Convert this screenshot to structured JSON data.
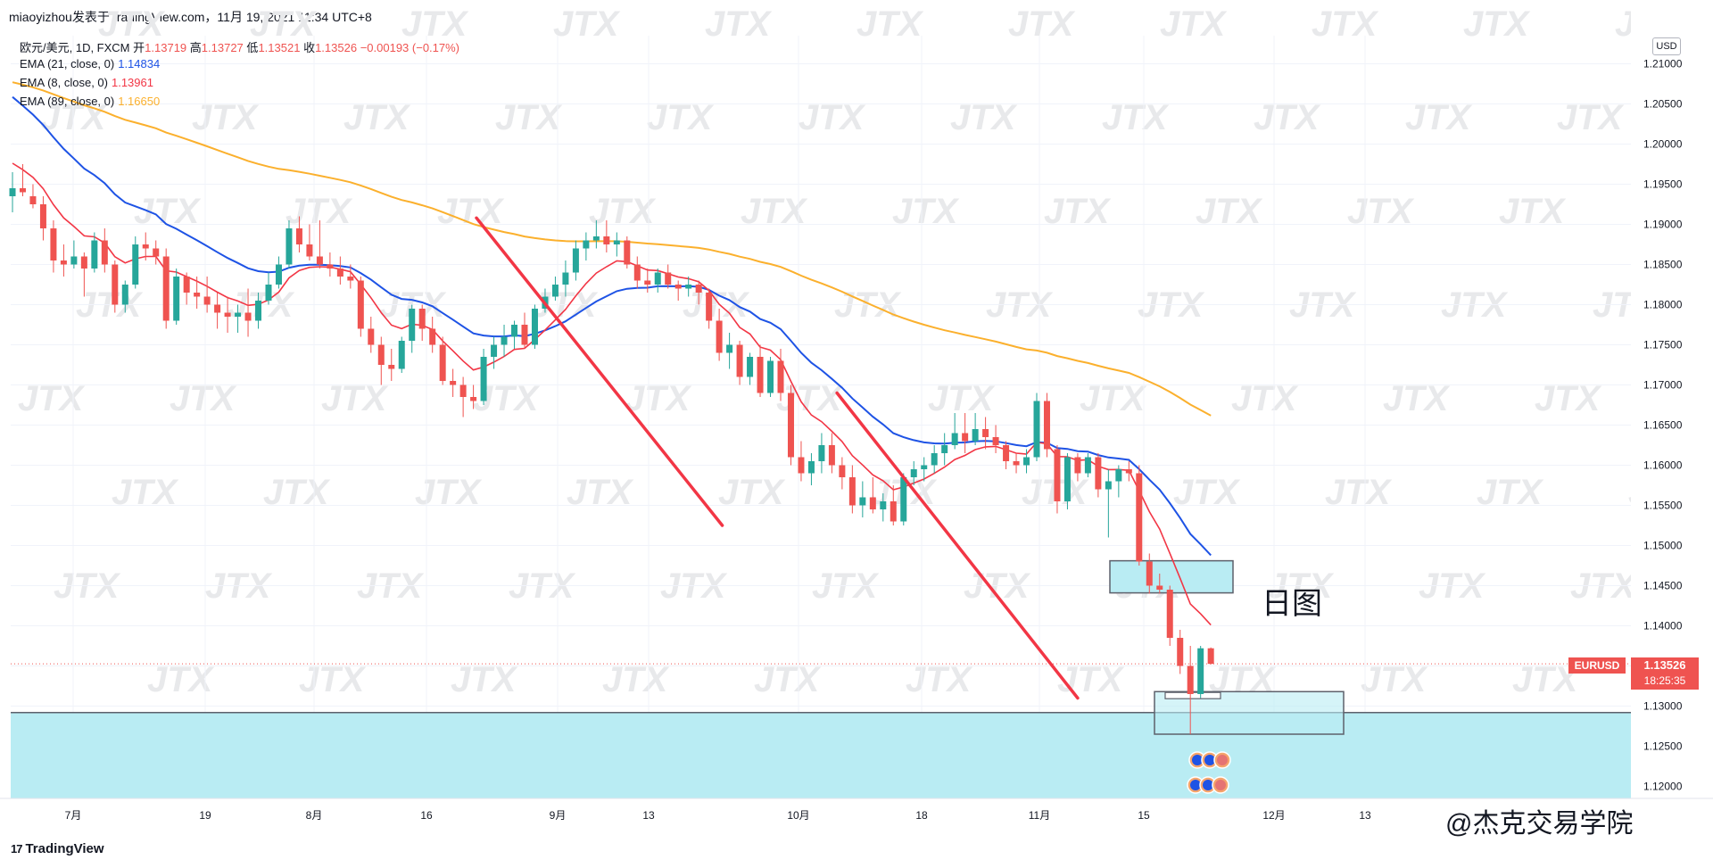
{
  "header": {
    "publish_line": "miaoyizhou发表于TradingView.com，11月 19, 2021 11:34 UTC+8"
  },
  "legend": {
    "symbol": "欧元/美元, 1D, FXCM",
    "open_label": "开",
    "open": "1.13719",
    "high_label": "高",
    "high": "1.13727",
    "low_label": "低",
    "low": "1.13521",
    "close_label": "收",
    "close": "1.13526",
    "change": "−0.00193 (−0.17%)",
    "ema21": {
      "label": "EMA (21, close, 0)",
      "value": "1.14834",
      "color": "#1e53e5"
    },
    "ema8": {
      "label": "EMA (8, close, 0)",
      "value": "1.13961",
      "color": "#f23645"
    },
    "ema89": {
      "label": "EMA (89, close, 0)",
      "value": "1.16650",
      "color": "#fbb02d"
    }
  },
  "currency_button": "USD",
  "price_tag": {
    "symbol": "EURUSD",
    "price": "1.13526",
    "countdown": "18:25:35"
  },
  "annotation_text": "日图",
  "watermark_text": "JTX",
  "footer": {
    "logo_text": "TradingView",
    "logo_mark": "17",
    "credit": "@杰克交易学院"
  },
  "colors": {
    "up": "#26a69a",
    "down": "#ef5350",
    "zone": "#b9ecf3",
    "trendline": "#f23645"
  },
  "chart_data": {
    "type": "candlestick",
    "title": "",
    "instrument": "EURUSD",
    "timeframe": "1D",
    "y_axis": {
      "ticks": [
        "1.21000",
        "1.20500",
        "1.20000",
        "1.19500",
        "1.19000",
        "1.18500",
        "1.18000",
        "1.17500",
        "1.17000",
        "1.16500",
        "1.16000",
        "1.15500",
        "1.15000",
        "1.14500",
        "1.14000",
        "1.13500",
        "1.13000",
        "1.12500",
        "1.12000"
      ],
      "range": [
        1.1185,
        1.2135
      ]
    },
    "x_axis": {
      "ticks": [
        "7月",
        "19",
        "8月",
        "16",
        "9月",
        "13",
        "10月",
        "18",
        "11月",
        "15",
        "12月",
        "13"
      ]
    },
    "current_price": 1.13526,
    "candles": [
      [
        1.1935,
        1.1965,
        1.1915,
        1.1945
      ],
      [
        1.1945,
        1.1975,
        1.1935,
        1.194
      ],
      [
        1.1935,
        1.195,
        1.192,
        1.1925
      ],
      [
        1.1925,
        1.1935,
        1.188,
        1.1895
      ],
      [
        1.1895,
        1.1905,
        1.184,
        1.1855
      ],
      [
        1.1855,
        1.1875,
        1.1835,
        1.185
      ],
      [
        1.185,
        1.188,
        1.1845,
        1.186
      ],
      [
        1.186,
        1.1865,
        1.181,
        1.1845
      ],
      [
        1.1845,
        1.189,
        1.184,
        1.188
      ],
      [
        1.188,
        1.1895,
        1.184,
        1.185
      ],
      [
        1.185,
        1.1855,
        1.179,
        1.18
      ],
      [
        1.18,
        1.183,
        1.179,
        1.1825
      ],
      [
        1.1825,
        1.1885,
        1.182,
        1.1875
      ],
      [
        1.1875,
        1.189,
        1.1855,
        1.187
      ],
      [
        1.187,
        1.188,
        1.185,
        1.186
      ],
      [
        1.186,
        1.187,
        1.177,
        1.178
      ],
      [
        1.178,
        1.1845,
        1.1775,
        1.1835
      ],
      [
        1.1835,
        1.184,
        1.18,
        1.1815
      ],
      [
        1.1815,
        1.1835,
        1.1795,
        1.181
      ],
      [
        1.181,
        1.1835,
        1.179,
        1.18
      ],
      [
        1.18,
        1.1815,
        1.177,
        1.179
      ],
      [
        1.179,
        1.181,
        1.1765,
        1.1785
      ],
      [
        1.1785,
        1.18,
        1.1765,
        1.179
      ],
      [
        1.179,
        1.182,
        1.176,
        1.178
      ],
      [
        1.178,
        1.1815,
        1.177,
        1.1805
      ],
      [
        1.1805,
        1.184,
        1.18,
        1.1825
      ],
      [
        1.1825,
        1.186,
        1.182,
        1.185
      ],
      [
        1.185,
        1.1905,
        1.1845,
        1.1895
      ],
      [
        1.1895,
        1.191,
        1.1865,
        1.1875
      ],
      [
        1.1875,
        1.19,
        1.1855,
        1.186
      ],
      [
        1.186,
        1.1905,
        1.1845,
        1.185
      ],
      [
        1.185,
        1.1865,
        1.1835,
        1.1845
      ],
      [
        1.1845,
        1.186,
        1.1825,
        1.1835
      ],
      [
        1.1835,
        1.185,
        1.182,
        1.183
      ],
      [
        1.183,
        1.1835,
        1.176,
        1.177
      ],
      [
        1.177,
        1.1785,
        1.174,
        1.175
      ],
      [
        1.175,
        1.176,
        1.17,
        1.1725
      ],
      [
        1.1725,
        1.1745,
        1.1705,
        1.172
      ],
      [
        1.172,
        1.176,
        1.1715,
        1.1755
      ],
      [
        1.1755,
        1.18,
        1.174,
        1.1795
      ],
      [
        1.1795,
        1.18,
        1.1755,
        1.177
      ],
      [
        1.177,
        1.1785,
        1.174,
        1.175
      ],
      [
        1.175,
        1.176,
        1.17,
        1.1705
      ],
      [
        1.1705,
        1.172,
        1.1685,
        1.17
      ],
      [
        1.17,
        1.171,
        1.166,
        1.1685
      ],
      [
        1.1685,
        1.17,
        1.167,
        1.168
      ],
      [
        1.168,
        1.1745,
        1.1675,
        1.1735
      ],
      [
        1.1735,
        1.176,
        1.172,
        1.175
      ],
      [
        1.175,
        1.1775,
        1.1735,
        1.176
      ],
      [
        1.176,
        1.178,
        1.1745,
        1.1775
      ],
      [
        1.1775,
        1.179,
        1.1745,
        1.175
      ],
      [
        1.175,
        1.18,
        1.1745,
        1.1795
      ],
      [
        1.1795,
        1.182,
        1.179,
        1.181
      ],
      [
        1.181,
        1.1835,
        1.1805,
        1.1825
      ],
      [
        1.1825,
        1.1855,
        1.181,
        1.184
      ],
      [
        1.184,
        1.188,
        1.183,
        1.187
      ],
      [
        1.187,
        1.189,
        1.1855,
        1.188
      ],
      [
        1.188,
        1.1905,
        1.187,
        1.1885
      ],
      [
        1.1885,
        1.1905,
        1.1865,
        1.1875
      ],
      [
        1.1875,
        1.189,
        1.186,
        1.188
      ],
      [
        1.188,
        1.1885,
        1.1845,
        1.185
      ],
      [
        1.185,
        1.186,
        1.182,
        1.183
      ],
      [
        1.183,
        1.1845,
        1.1815,
        1.1825
      ],
      [
        1.1825,
        1.1845,
        1.1815,
        1.184
      ],
      [
        1.184,
        1.185,
        1.182,
        1.1825
      ],
      [
        1.1825,
        1.183,
        1.1805,
        1.182
      ],
      [
        1.182,
        1.1835,
        1.181,
        1.1825
      ],
      [
        1.1825,
        1.183,
        1.18,
        1.1815
      ],
      [
        1.1815,
        1.182,
        1.177,
        1.178
      ],
      [
        1.178,
        1.1795,
        1.173,
        1.174
      ],
      [
        1.174,
        1.1765,
        1.172,
        1.175
      ],
      [
        1.175,
        1.1755,
        1.17,
        1.171
      ],
      [
        1.171,
        1.174,
        1.17,
        1.1735
      ],
      [
        1.1735,
        1.175,
        1.1685,
        1.169
      ],
      [
        1.169,
        1.1735,
        1.1685,
        1.173
      ],
      [
        1.173,
        1.1745,
        1.168,
        1.169
      ],
      [
        1.169,
        1.17,
        1.16,
        1.161
      ],
      [
        1.161,
        1.163,
        1.158,
        1.159
      ],
      [
        1.159,
        1.1615,
        1.1575,
        1.1605
      ],
      [
        1.1605,
        1.164,
        1.159,
        1.1625
      ],
      [
        1.1625,
        1.164,
        1.159,
        1.16
      ],
      [
        1.16,
        1.161,
        1.157,
        1.1585
      ],
      [
        1.1585,
        1.16,
        1.154,
        1.155
      ],
      [
        1.155,
        1.158,
        1.1535,
        1.156
      ],
      [
        1.156,
        1.1585,
        1.154,
        1.1545
      ],
      [
        1.1545,
        1.1565,
        1.153,
        1.1555
      ],
      [
        1.1555,
        1.1575,
        1.1525,
        1.153
      ],
      [
        1.153,
        1.159,
        1.1525,
        1.1585
      ],
      [
        1.1585,
        1.1605,
        1.1575,
        1.1595
      ],
      [
        1.1595,
        1.161,
        1.158,
        1.16
      ],
      [
        1.16,
        1.1625,
        1.159,
        1.1615
      ],
      [
        1.1615,
        1.164,
        1.16,
        1.1625
      ],
      [
        1.1625,
        1.1665,
        1.162,
        1.164
      ],
      [
        1.164,
        1.1665,
        1.1615,
        1.163
      ],
      [
        1.163,
        1.1665,
        1.1625,
        1.1645
      ],
      [
        1.1645,
        1.166,
        1.162,
        1.1635
      ],
      [
        1.1635,
        1.165,
        1.1615,
        1.1625
      ],
      [
        1.1625,
        1.163,
        1.1595,
        1.1605
      ],
      [
        1.1605,
        1.1615,
        1.159,
        1.16
      ],
      [
        1.16,
        1.162,
        1.159,
        1.161
      ],
      [
        1.161,
        1.169,
        1.1605,
        1.168
      ],
      [
        1.168,
        1.169,
        1.161,
        1.162
      ],
      [
        1.162,
        1.1625,
        1.154,
        1.1555
      ],
      [
        1.1555,
        1.1615,
        1.1545,
        1.161
      ],
      [
        1.161,
        1.1615,
        1.158,
        1.159
      ],
      [
        1.159,
        1.1615,
        1.1585,
        1.161
      ],
      [
        1.161,
        1.1615,
        1.156,
        1.157
      ],
      [
        1.157,
        1.1595,
        1.151,
        1.158
      ],
      [
        1.158,
        1.16,
        1.156,
        1.1595
      ],
      [
        1.1595,
        1.1605,
        1.158,
        1.159
      ],
      [
        1.159,
        1.16,
        1.1475,
        1.148
      ],
      [
        1.148,
        1.149,
        1.144,
        1.145
      ],
      [
        1.145,
        1.1465,
        1.144,
        1.1445
      ],
      [
        1.1445,
        1.145,
        1.1375,
        1.1385
      ],
      [
        1.1385,
        1.1395,
        1.134,
        1.135
      ],
      [
        1.135,
        1.1375,
        1.1265,
        1.1315
      ],
      [
        1.1315,
        1.1375,
        1.131,
        1.1372
      ],
      [
        1.1372,
        1.1373,
        1.1352,
        1.13526
      ]
    ],
    "ema8_last": 1.13961,
    "ema21_last": 1.14834,
    "ema89_last": 1.1665,
    "annotations": [
      "日图"
    ]
  }
}
